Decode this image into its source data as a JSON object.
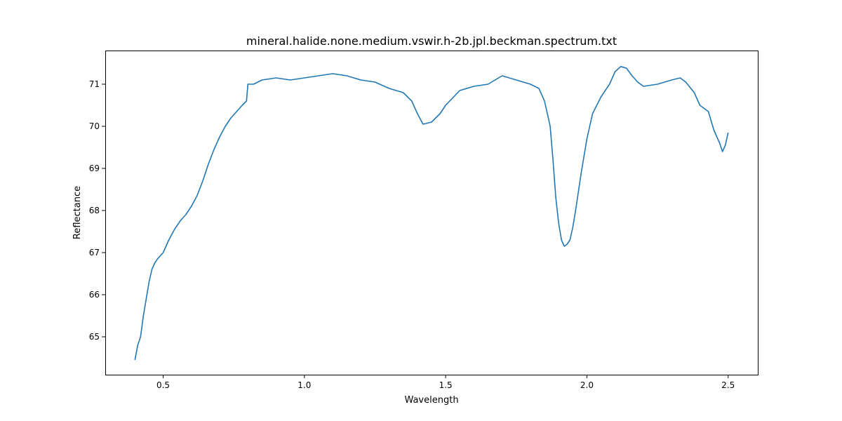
{
  "chart_data": {
    "type": "line",
    "title": "mineral.halide.none.medium.vswir.h-2b.jpl.beckman.spectrum.txt",
    "xlabel": "Wavelength",
    "ylabel": "Reflectance",
    "xlim": [
      0.295,
      2.605
    ],
    "ylim": [
      64.1,
      71.8
    ],
    "xticks": [
      0.5,
      1.0,
      1.5,
      2.0,
      2.5
    ],
    "xtick_labels": [
      "0.5",
      "1.0",
      "1.5",
      "2.0",
      "2.5"
    ],
    "yticks": [
      65,
      66,
      67,
      68,
      69,
      70,
      71
    ],
    "ytick_labels": [
      "65",
      "66",
      "67",
      "68",
      "69",
      "70",
      "71"
    ],
    "grid": false,
    "legend": "none",
    "series": [
      {
        "color": "#1f77b4",
        "x": [
          0.4,
          0.41,
          0.42,
          0.43,
          0.44,
          0.45,
          0.46,
          0.47,
          0.48,
          0.5,
          0.52,
          0.54,
          0.56,
          0.58,
          0.6,
          0.62,
          0.64,
          0.66,
          0.68,
          0.7,
          0.72,
          0.74,
          0.76,
          0.78,
          0.795,
          0.8,
          0.82,
          0.85,
          0.9,
          0.95,
          1.0,
          1.05,
          1.1,
          1.15,
          1.2,
          1.25,
          1.3,
          1.35,
          1.38,
          1.4,
          1.42,
          1.45,
          1.48,
          1.5,
          1.55,
          1.6,
          1.65,
          1.7,
          1.75,
          1.8,
          1.83,
          1.85,
          1.87,
          1.88,
          1.89,
          1.9,
          1.91,
          1.92,
          1.93,
          1.94,
          1.95,
          1.96,
          1.98,
          2.0,
          2.02,
          2.05,
          2.08,
          2.1,
          2.12,
          2.14,
          2.16,
          2.18,
          2.2,
          2.25,
          2.3,
          2.33,
          2.35,
          2.38,
          2.4,
          2.43,
          2.45,
          2.47,
          2.48,
          2.49,
          2.5
        ],
        "y": [
          64.45,
          64.8,
          65.0,
          65.5,
          65.9,
          66.3,
          66.6,
          66.75,
          66.85,
          67.0,
          67.3,
          67.55,
          67.75,
          67.9,
          68.1,
          68.35,
          68.7,
          69.1,
          69.45,
          69.75,
          70.0,
          70.2,
          70.35,
          70.5,
          70.6,
          71.0,
          71.0,
          71.1,
          71.15,
          71.1,
          71.15,
          71.2,
          71.25,
          71.2,
          71.1,
          71.05,
          70.9,
          70.8,
          70.6,
          70.3,
          70.05,
          70.1,
          70.3,
          70.5,
          70.85,
          70.95,
          71.0,
          71.2,
          71.1,
          71.0,
          70.9,
          70.6,
          70.0,
          69.2,
          68.3,
          67.7,
          67.3,
          67.15,
          67.2,
          67.3,
          67.6,
          68.0,
          68.9,
          69.7,
          70.3,
          70.7,
          71.0,
          71.3,
          71.42,
          71.38,
          71.2,
          71.05,
          70.95,
          71.0,
          71.1,
          71.15,
          71.05,
          70.8,
          70.5,
          70.35,
          69.9,
          69.6,
          69.4,
          69.55,
          69.85
        ]
      }
    ]
  }
}
